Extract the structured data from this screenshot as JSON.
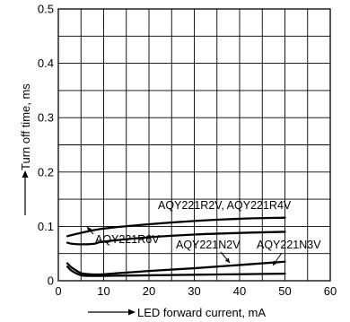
{
  "chart_data": {
    "type": "line",
    "title": "",
    "xlabel": "LED forward current, mA",
    "ylabel": "Turn off time, ms",
    "xlim": [
      0,
      60
    ],
    "ylim": [
      0,
      0.5
    ],
    "x_ticks": [
      0,
      10,
      20,
      30,
      40,
      50,
      60
    ],
    "x_tick_labels": [
      "0",
      "10",
      "20",
      "30",
      "40",
      "50",
      "60"
    ],
    "y_ticks": [
      0,
      0.1,
      0.2,
      0.3,
      0.4,
      0.5
    ],
    "y_tick_labels": [
      "0",
      "0.1",
      "0.2",
      "0.3",
      "0.4",
      "0.5"
    ],
    "grid": true,
    "series": [
      {
        "name": "AQY221R2V, AQY221R4V",
        "x": [
          2,
          5,
          10,
          20,
          30,
          40,
          50
        ],
        "y": [
          0.082,
          0.088,
          0.096,
          0.104,
          0.11,
          0.114,
          0.116
        ]
      },
      {
        "name": "AQY221R6V",
        "x": [
          2,
          3,
          5,
          8,
          10,
          20,
          30,
          40,
          50
        ],
        "y": [
          0.07,
          0.068,
          0.067,
          0.068,
          0.072,
          0.08,
          0.085,
          0.088,
          0.09
        ]
      },
      {
        "name": "AQY221N2V",
        "x": [
          2,
          3,
          5,
          7,
          10,
          20,
          30,
          40,
          50
        ],
        "y": [
          0.032,
          0.024,
          0.014,
          0.012,
          0.012,
          0.018,
          0.023,
          0.029,
          0.035
        ]
      },
      {
        "name": "AQY221N3V",
        "x": [
          2,
          3,
          5,
          7,
          10,
          20,
          30,
          40,
          50
        ],
        "y": [
          0.026,
          0.018,
          0.01,
          0.009,
          0.009,
          0.01,
          0.011,
          0.012,
          0.013
        ]
      }
    ],
    "annotations": [
      {
        "text": "AQY221R2V, AQY221R4V"
      },
      {
        "text": "AQY221R6V"
      },
      {
        "text": "AQY221N2V"
      },
      {
        "text": "AQY221N3V"
      }
    ]
  }
}
